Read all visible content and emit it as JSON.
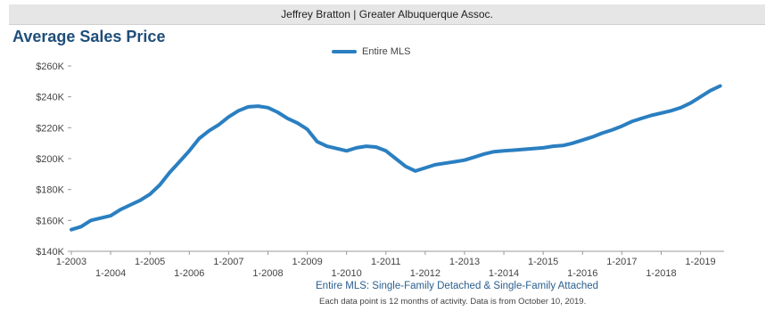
{
  "header": {
    "text": "Jeffrey Bratton | Greater Albuquerque Assoc."
  },
  "chart_data": {
    "type": "line",
    "title": "Average Sales Price",
    "xlabel": "",
    "ylabel": "",
    "ylim": [
      140000,
      260000
    ],
    "yticks": [
      {
        "value": 140000,
        "label": "$140K"
      },
      {
        "value": 160000,
        "label": "$160K"
      },
      {
        "value": 180000,
        "label": "$180K"
      },
      {
        "value": 200000,
        "label": "$200K"
      },
      {
        "value": 220000,
        "label": "$220K"
      },
      {
        "value": 240000,
        "label": "$240K"
      },
      {
        "value": 260000,
        "label": "$260K"
      }
    ],
    "xticks": [
      {
        "t": 2003,
        "label": "1-2003"
      },
      {
        "t": 2004,
        "label": "1-2004"
      },
      {
        "t": 2005,
        "label": "1-2005"
      },
      {
        "t": 2006,
        "label": "1-2006"
      },
      {
        "t": 2007,
        "label": "1-2007"
      },
      {
        "t": 2008,
        "label": "1-2008"
      },
      {
        "t": 2009,
        "label": "1-2009"
      },
      {
        "t": 2010,
        "label": "1-2010"
      },
      {
        "t": 2011,
        "label": "1-2011"
      },
      {
        "t": 2012,
        "label": "1-2012"
      },
      {
        "t": 2013,
        "label": "1-2013"
      },
      {
        "t": 2014,
        "label": "1-2014"
      },
      {
        "t": 2015,
        "label": "1-2015"
      },
      {
        "t": 2016,
        "label": "1-2016"
      },
      {
        "t": 2017,
        "label": "1-2017"
      },
      {
        "t": 2018,
        "label": "1-2018"
      },
      {
        "t": 2019,
        "label": "1-2019"
      }
    ],
    "legend": "top-center",
    "grid": false,
    "series": [
      {
        "name": "Entire MLS",
        "color": "#2a7fc1",
        "points": [
          [
            2003.0,
            154000
          ],
          [
            2003.25,
            156000
          ],
          [
            2003.5,
            160000
          ],
          [
            2003.75,
            161500
          ],
          [
            2004.0,
            163000
          ],
          [
            2004.25,
            167000
          ],
          [
            2004.5,
            170000
          ],
          [
            2004.75,
            173000
          ],
          [
            2005.0,
            177000
          ],
          [
            2005.25,
            183000
          ],
          [
            2005.5,
            191000
          ],
          [
            2005.75,
            198000
          ],
          [
            2006.0,
            205000
          ],
          [
            2006.25,
            213000
          ],
          [
            2006.5,
            218000
          ],
          [
            2006.75,
            222000
          ],
          [
            2007.0,
            227000
          ],
          [
            2007.25,
            231000
          ],
          [
            2007.5,
            233500
          ],
          [
            2007.75,
            234000
          ],
          [
            2008.0,
            233000
          ],
          [
            2008.25,
            230000
          ],
          [
            2008.5,
            226000
          ],
          [
            2008.75,
            223000
          ],
          [
            2009.0,
            219000
          ],
          [
            2009.25,
            211000
          ],
          [
            2009.5,
            208000
          ],
          [
            2009.75,
            206500
          ],
          [
            2010.0,
            205000
          ],
          [
            2010.25,
            207000
          ],
          [
            2010.5,
            208000
          ],
          [
            2010.75,
            207500
          ],
          [
            2011.0,
            205000
          ],
          [
            2011.25,
            200000
          ],
          [
            2011.5,
            195000
          ],
          [
            2011.75,
            192000
          ],
          [
            2012.0,
            194000
          ],
          [
            2012.25,
            196000
          ],
          [
            2012.5,
            197000
          ],
          [
            2012.75,
            198000
          ],
          [
            2013.0,
            199000
          ],
          [
            2013.25,
            201000
          ],
          [
            2013.5,
            203000
          ],
          [
            2013.75,
            204500
          ],
          [
            2014.0,
            205000
          ],
          [
            2014.25,
            205500
          ],
          [
            2014.5,
            206000
          ],
          [
            2014.75,
            206500
          ],
          [
            2015.0,
            207000
          ],
          [
            2015.25,
            208000
          ],
          [
            2015.5,
            208500
          ],
          [
            2015.75,
            210000
          ],
          [
            2016.0,
            212000
          ],
          [
            2016.25,
            214000
          ],
          [
            2016.5,
            216500
          ],
          [
            2016.75,
            218500
          ],
          [
            2017.0,
            221000
          ],
          [
            2017.25,
            224000
          ],
          [
            2017.5,
            226000
          ],
          [
            2017.75,
            228000
          ],
          [
            2018.0,
            229500
          ],
          [
            2018.25,
            231000
          ],
          [
            2018.5,
            233000
          ],
          [
            2018.75,
            236000
          ],
          [
            2019.0,
            240000
          ],
          [
            2019.25,
            244000
          ],
          [
            2019.5,
            247000
          ]
        ]
      }
    ]
  },
  "footnotes": {
    "line1": "Entire MLS: Single-Family Detached & Single-Family Attached",
    "line2": "Each data point is 12 months of activity. Data is from October 10, 2019."
  }
}
